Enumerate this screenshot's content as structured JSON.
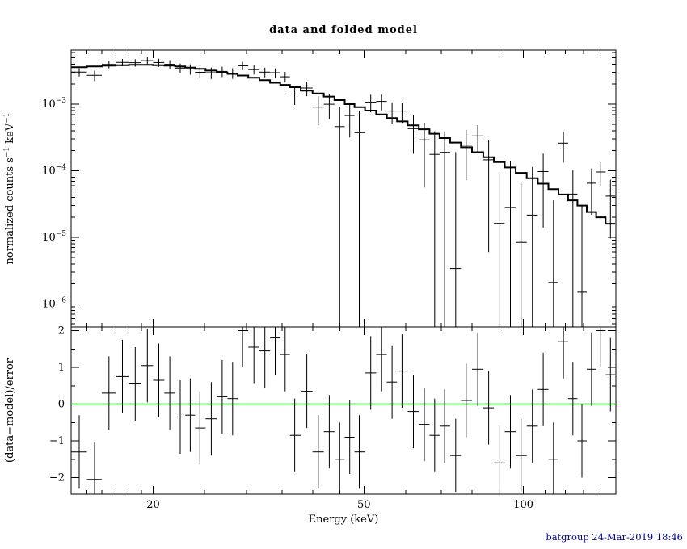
{
  "title": "data and folded model",
  "footer": "batgroup 24-Mar-2019 18:46",
  "colors": {
    "background": "#ffffff",
    "axis": "#000000",
    "data": "#000000",
    "model": "#000000",
    "zero_line": "#00c000",
    "footer_text": "#000099"
  },
  "chart_data": [
    {
      "type": "line",
      "panel": "spectrum",
      "title": "data and folded model",
      "xlabel": "Energy (keV)",
      "ylabel": "normalized counts s⁻¹ keV⁻¹",
      "ylabel_parts": [
        {
          "text": "normalized counts s",
          "sup": false
        },
        {
          "text": "−1",
          "sup": true
        },
        {
          "text": " keV",
          "sup": false
        },
        {
          "text": "−1",
          "sup": true
        }
      ],
      "xscale": "log",
      "yscale": "log",
      "xlim": [
        14.0,
        149.5
      ],
      "ylim": [
        4.5e-07,
        0.0065
      ],
      "legend": "none",
      "grid": false,
      "xticks": {
        "major": [
          20,
          50,
          100
        ],
        "major_labels": [
          "20",
          "50",
          "100"
        ],
        "minor": [
          15,
          16,
          17,
          18,
          19,
          25,
          30,
          35,
          40,
          45,
          60,
          70,
          80,
          90,
          110,
          120,
          130,
          140
        ]
      },
      "yticks": {
        "exponents": [
          -3,
          -4,
          -5,
          -6
        ]
      },
      "x": [
        14.5,
        15.5,
        16.5,
        17.5,
        18.5,
        19.5,
        20.5,
        21.5,
        22.5,
        23.5,
        24.5,
        25.75,
        27,
        28.25,
        29.5,
        31,
        32.5,
        34,
        35.5,
        37,
        39,
        41,
        43,
        45,
        47,
        49,
        51.5,
        54,
        56.5,
        59,
        62,
        65,
        68,
        71,
        74.5,
        78,
        82,
        86,
        90,
        94.5,
        99,
        104,
        109,
        114,
        119,
        124,
        129,
        134.5,
        140,
        146
      ],
      "series": [
        {
          "name": "data",
          "marker": "cross-errorbar",
          "values": [
            0.00304,
            0.00271,
            0.00395,
            0.00425,
            0.0042,
            0.00451,
            0.00423,
            0.00398,
            0.00349,
            0.00337,
            0.00302,
            0.00297,
            0.00311,
            0.00293,
            0.00378,
            0.00331,
            0.00303,
            0.00297,
            0.00258,
            0.00142,
            0.00175,
            0.000903,
            0.000998,
            0.00046,
            0.000676,
            0.000374,
            0.00107,
            0.0011,
            0.000787,
            0.000788,
            0.00043,
            0.000291,
            0.000176,
            0.000189,
            3.4e-06,
            0.000242,
            0.000334,
            0.000146,
            1.62e-05,
            2.8e-05,
            8.4e-06,
            2.16e-05,
            9.73e-05,
            2.1e-06,
            0.00026,
            4.46e-05,
            1.5e-06,
            6.5e-05,
            9.6e-05,
            4.16e-05
          ]
        },
        {
          "name": "data_error",
          "values": [
            0.000431,
            0.000483,
            0.0005,
            0.000533,
            0.000545,
            0.000581,
            0.000585,
            0.0006,
            0.0006,
            0.0006,
            0.000585,
            0.000575,
            0.00055,
            0.000533,
            0.00054,
            0.000523,
            0.000503,
            0.000483,
            0.000467,
            0.000447,
            0.000429,
            0.000421,
            0.000403,
            0.00046,
            0.00036,
            0.000405,
            0.000318,
            0.000296,
            0.000278,
            0.000264,
            0.00025,
            0.000235,
            0.000216,
            0.000202,
            0.000187,
            0.00017,
            0.000152,
            0.00014,
            7.43e-05,
            0.000112,
            6.04e-05,
            9.23e-05,
            8.33e-05,
            3.39e-05,
            0.000127,
            5.73e-05,
            2.85e-05,
            4.32e-05,
            3.8e-05,
            3.2e-05
          ]
        },
        {
          "name": "folded_model",
          "style": "step",
          "values": [
            0.0036,
            0.0037,
            0.0038,
            0.00385,
            0.0039,
            0.0039,
            0.00385,
            0.0038,
            0.0037,
            0.00355,
            0.0034,
            0.0032,
            0.003,
            0.00285,
            0.0027,
            0.0025,
            0.0023,
            0.0021,
            0.00195,
            0.0018,
            0.0016,
            0.00145,
            0.0013,
            0.00115,
            0.001,
            0.0009,
            0.0008,
            0.0007,
            0.00062,
            0.00055,
            0.00048,
            0.00042,
            0.00036,
            0.00031,
            0.000265,
            0.000225,
            0.00019,
            0.00016,
            0.000135,
            0.000112,
            9.3e-05,
            7.7e-05,
            6.4e-05,
            5.3e-05,
            4.4e-05,
            3.6e-05,
            3e-05,
            2.4e-05,
            2e-05,
            1.6e-05
          ]
        }
      ]
    },
    {
      "type": "scatter",
      "panel": "residuals",
      "xlabel": "Energy (keV)",
      "ylabel": "(data−model)/error",
      "xscale": "log",
      "yscale": "linear",
      "xlim": [
        14.0,
        149.5
      ],
      "ylim": [
        -2.45,
        2.1
      ],
      "grid": false,
      "zero_line": {
        "y": 0,
        "color": "#00c000"
      },
      "yticks": {
        "major": [
          2,
          1,
          0,
          -1,
          -2
        ],
        "labels": [
          "2",
          "1",
          "0",
          "−1",
          "−2"
        ],
        "minor": [
          1.5,
          0.5,
          -0.5,
          -1.5
        ]
      },
      "x": [
        14.5,
        15.5,
        16.5,
        17.5,
        18.5,
        19.5,
        20.5,
        21.5,
        22.5,
        23.5,
        24.5,
        25.75,
        27,
        28.25,
        29.5,
        31,
        32.5,
        34,
        35.5,
        37,
        39,
        41,
        43,
        45,
        47,
        49,
        51.5,
        54,
        56.5,
        59,
        62,
        65,
        68,
        71,
        74.5,
        78,
        82,
        86,
        90,
        94.5,
        99,
        104,
        109,
        114,
        119,
        124,
        129,
        134.5,
        140,
        146
      ],
      "series": [
        {
          "name": "residuals",
          "marker": "cross-errorbar",
          "error": 1.0,
          "values": [
            -1.3,
            -2.05,
            0.3,
            0.75,
            0.55,
            1.05,
            0.65,
            0.3,
            -0.35,
            -0.3,
            -0.65,
            -0.4,
            0.2,
            0.15,
            2.0,
            1.55,
            1.45,
            1.8,
            1.35,
            -0.85,
            0.35,
            -1.3,
            -0.75,
            -1.5,
            -0.9,
            -1.3,
            0.85,
            1.35,
            0.6,
            0.9,
            -0.2,
            -0.55,
            -0.85,
            -0.6,
            -1.4,
            0.1,
            0.95,
            -0.1,
            -1.6,
            -0.75,
            -1.4,
            -0.6,
            0.4,
            -1.5,
            1.7,
            0.15,
            -1.0,
            0.95,
            2.0,
            0.8
          ]
        }
      ]
    }
  ]
}
